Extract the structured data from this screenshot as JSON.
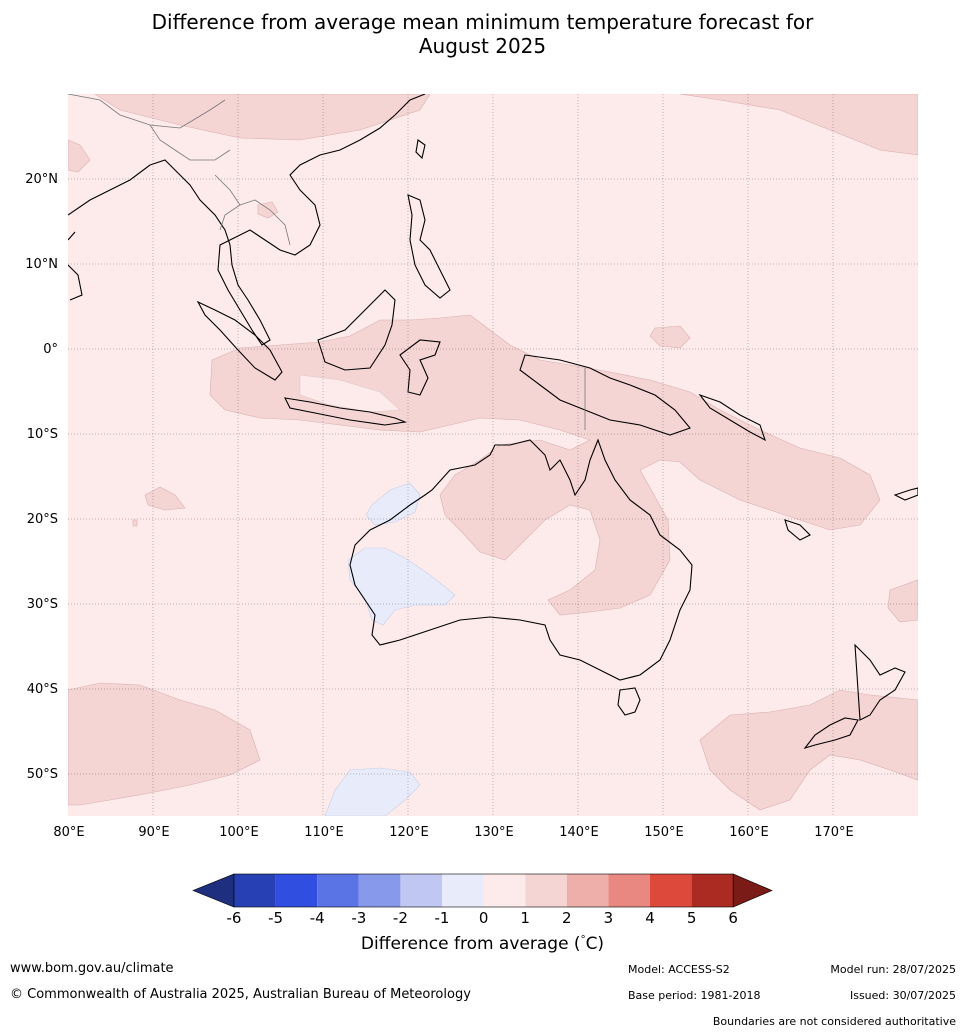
{
  "title_line1": "Difference from average mean minimum temperature forecast for",
  "title_line2": "August 2025",
  "map": {
    "lat_labels": [
      "20°N",
      "10°N",
      "0°",
      "10°S",
      "20°S",
      "30°S",
      "40°S",
      "50°S"
    ],
    "lon_labels": [
      "80°E",
      "90°E",
      "100°E",
      "110°E",
      "120°E",
      "130°E",
      "140°E",
      "150°E",
      "160°E",
      "170°E"
    ],
    "lon_range": [
      80,
      180
    ],
    "lat_range": [
      -55,
      30
    ]
  },
  "colorbar": {
    "ticks": [
      "-6",
      "-5",
      "-4",
      "-3",
      "-2",
      "-1",
      "0",
      "1",
      "2",
      "3",
      "4",
      "5",
      "6"
    ],
    "colors": [
      "#1f2f80",
      "#2741b5",
      "#304fe0",
      "#5a73e5",
      "#8799eb",
      "#bfc7f2",
      "#e8ecfa",
      "#fcebea",
      "#f5d4d4",
      "#eeafaa",
      "#e88880",
      "#dd4a3c",
      "#ab2b22",
      "#7a1b17"
    ],
    "label": "Difference from average (°C)"
  },
  "footer": {
    "website": "www.bom.gov.au/climate",
    "copyright": "© Commonwealth of Australia 2025, Australian Bureau of Meteorology",
    "model": "Model: ACCESS-S2",
    "base_period": "Base period: 1981-2018",
    "model_run": "Model run: 28/07/2025",
    "issued": "Issued: 30/07/2025",
    "boundaries": "Boundaries are not considered authoritative"
  }
}
